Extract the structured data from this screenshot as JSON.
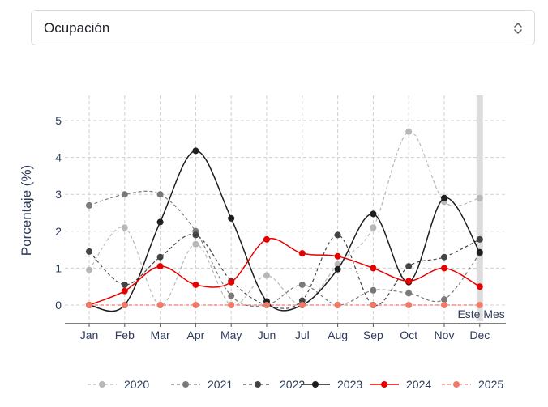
{
  "dropdown": {
    "selected": "Ocupación"
  },
  "chart_data": {
    "type": "line",
    "ylabel": "Porcentaje (%)",
    "xlabel": "",
    "categories": [
      "Jan",
      "Feb",
      "Mar",
      "Apr",
      "May",
      "Jun",
      "Jul",
      "Aug",
      "Sep",
      "Oct",
      "Nov",
      "Dec"
    ],
    "ylim": [
      0,
      5
    ],
    "yticks": [
      0,
      1,
      2,
      3,
      4,
      5
    ],
    "grid": true,
    "legend_position": "bottom",
    "annotation": "Este Mes",
    "highlight_category": "Dec",
    "series": [
      {
        "name": "2020",
        "color": "#b8b8b8",
        "style": "dashed",
        "values": [
          0.95,
          2.1,
          0.0,
          1.65,
          0.0,
          0.8,
          0.0,
          1.1,
          2.1,
          4.7,
          2.8,
          2.9
        ]
      },
      {
        "name": "2021",
        "color": "#7a7a7a",
        "style": "dashed",
        "values": [
          2.7,
          3.0,
          3.0,
          2.0,
          0.25,
          0.0,
          0.55,
          0.0,
          0.4,
          0.32,
          0.15,
          1.4
        ]
      },
      {
        "name": "2022",
        "color": "#444444",
        "style": "dashed",
        "values": [
          1.45,
          0.55,
          1.3,
          1.9,
          0.65,
          0.0,
          0.12,
          1.9,
          0.0,
          1.05,
          1.3,
          1.78
        ]
      },
      {
        "name": "2023",
        "color": "#1e1e1e",
        "style": "solid",
        "values": [
          0.0,
          0.0,
          2.25,
          4.18,
          2.35,
          0.1,
          0.0,
          0.97,
          2.47,
          0.62,
          2.9,
          1.43
        ]
      },
      {
        "name": "2024",
        "color": "#e60000",
        "style": "solid",
        "values": [
          0.0,
          0.38,
          1.05,
          0.55,
          0.62,
          1.78,
          1.4,
          1.32,
          1.0,
          0.65,
          1.0,
          0.5
        ]
      },
      {
        "name": "2025",
        "color": "#f07a6a",
        "style": "dashed",
        "values": [
          0.0,
          0.0,
          0.0,
          0.0,
          0.0,
          0.0,
          0.0,
          0.0,
          0.0,
          0.0,
          0.0,
          0.0
        ]
      }
    ]
  },
  "colors": {
    "axis_text": "#2d3b5a",
    "grid": "#cfcfcf",
    "highlight_band": "#d9d9d9"
  },
  "icons": {
    "dropdown_caret": "chevron-up-down-icon"
  }
}
